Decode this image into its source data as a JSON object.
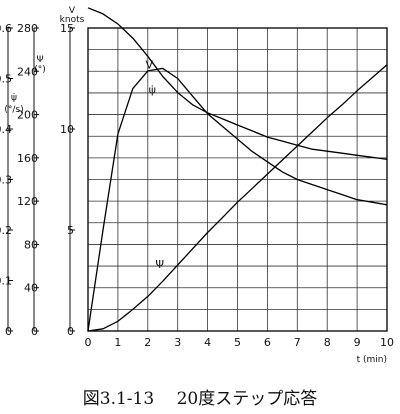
{
  "chart_data": {
    "type": "line",
    "caption": "図3.1-13　 20度ステップ応答",
    "x": {
      "label": "t (min)",
      "range": [
        0,
        10
      ],
      "ticks": [
        "0",
        "1",
        "2",
        "3",
        "4",
        "5",
        "6",
        "7",
        "8",
        "9",
        "10"
      ]
    },
    "axes": [
      {
        "id": "speed",
        "title": "V",
        "unit": "knots",
        "range": [
          0,
          15
        ],
        "tick_values": [
          0,
          5,
          10,
          15
        ],
        "ticks": [
          "0",
          "5",
          "10",
          "15"
        ]
      },
      {
        "id": "heading",
        "title": "Ψ",
        "unit": "(°)",
        "range": [
          0,
          280
        ],
        "tick_values": [
          0,
          40,
          80,
          120,
          160,
          200,
          240,
          280
        ],
        "ticks": [
          "0",
          "40",
          "80",
          "120",
          "160",
          "200",
          "240",
          "280"
        ]
      },
      {
        "id": "rate",
        "title": "ψ̇",
        "unit": "(°/s)",
        "range": [
          0,
          0.6
        ],
        "tick_values": [
          0,
          0.1,
          0.2,
          0.3,
          0.4,
          0.5,
          0.6
        ],
        "ticks": [
          "0",
          "0.1",
          "0.2",
          "0.3",
          "0.4",
          "0.5",
          "0.6"
        ]
      }
    ],
    "grid": true,
    "series": [
      {
        "name": "V",
        "axis": "speed",
        "x": [
          0,
          0.5,
          1,
          1.5,
          2,
          2.5,
          3,
          3.5,
          4,
          4.5,
          5,
          5.5,
          6,
          6.5,
          7,
          7.5,
          8,
          8.5,
          9,
          9.5,
          10
        ],
        "y": [
          16.0,
          15.7,
          15.2,
          14.5,
          13.6,
          12.6,
          11.8,
          11.2,
          10.8,
          10.5,
          10.2,
          9.9,
          9.6,
          9.4,
          9.2,
          9.0,
          8.9,
          8.8,
          8.7,
          8.6,
          8.5
        ]
      },
      {
        "name": "ψ̇",
        "axis": "rate",
        "x": [
          0,
          0.5,
          1,
          1.5,
          2,
          2.5,
          3,
          3.5,
          4,
          4.5,
          5,
          5.5,
          6,
          6.5,
          7,
          7.5,
          8,
          8.5,
          9,
          9.5,
          10
        ],
        "y": [
          0,
          0.2,
          0.39,
          0.48,
          0.515,
          0.52,
          0.5,
          0.465,
          0.43,
          0.405,
          0.38,
          0.355,
          0.335,
          0.315,
          0.3,
          0.29,
          0.28,
          0.27,
          0.26,
          0.255,
          0.25
        ]
      },
      {
        "name": "Ψ",
        "axis": "heading",
        "x": [
          0,
          0.5,
          1,
          1.5,
          2,
          2.5,
          3,
          3.5,
          4,
          4.5,
          5,
          5.5,
          6,
          6.5,
          7,
          7.5,
          8,
          8.5,
          9,
          9.5,
          10
        ],
        "y": [
          0,
          2,
          9,
          20,
          32,
          46,
          61,
          76,
          91,
          105,
          119,
          132,
          145,
          158,
          171,
          184,
          197,
          209,
          222,
          234,
          246
        ]
      }
    ]
  }
}
